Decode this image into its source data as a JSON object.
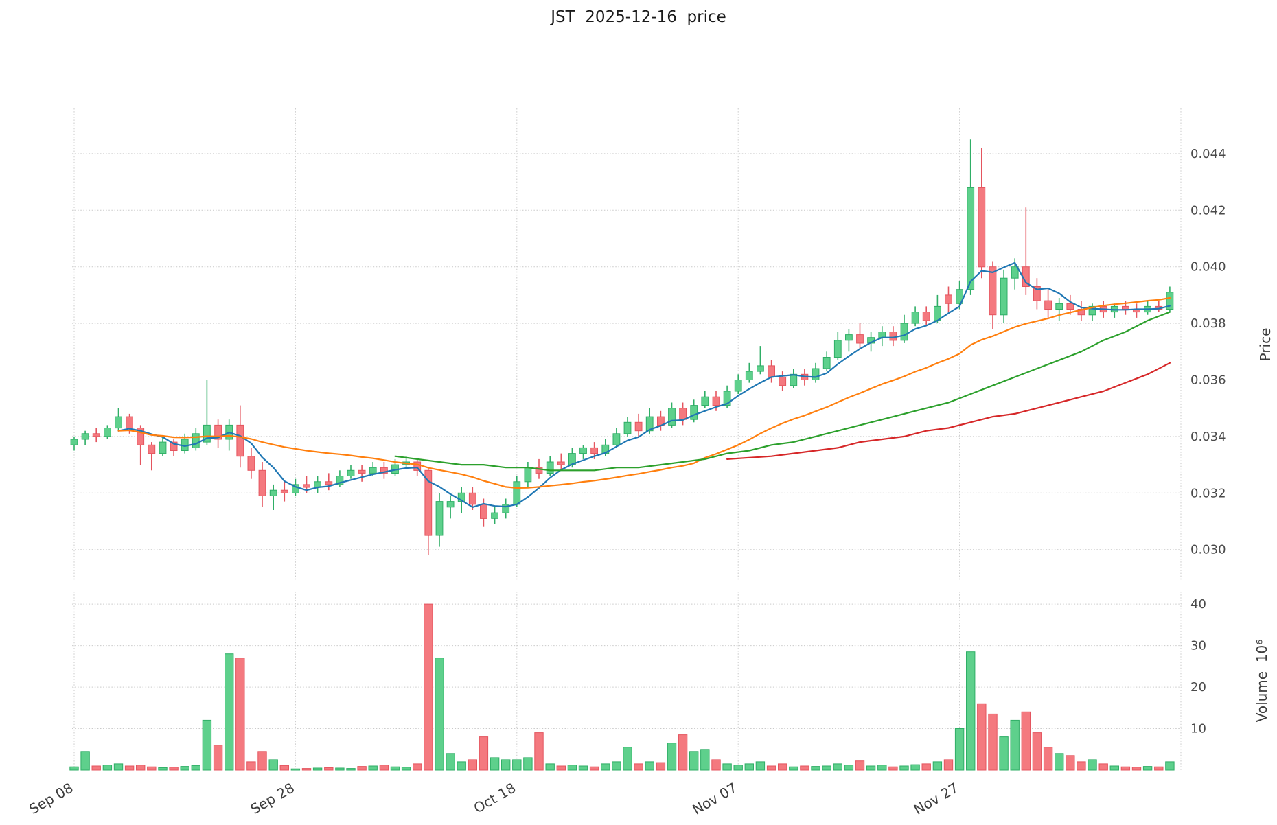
{
  "title": "JST  2025-12-16  price",
  "axes": {
    "price_label": "Price",
    "volume_label": "Volume  10⁶",
    "price_ticks": [
      0.03,
      0.032,
      0.034,
      0.036,
      0.038,
      0.04,
      0.042,
      0.044
    ],
    "volume_ticks": [
      10,
      20,
      30,
      40
    ],
    "x_ticks": [
      {
        "position": 0,
        "label": "Sep 08"
      },
      {
        "position": 20,
        "label": "Sep 28"
      },
      {
        "position": 40,
        "label": "Oct 18"
      },
      {
        "position": 60,
        "label": "Nov 07"
      },
      {
        "position": 80,
        "label": "Nov 27"
      }
    ],
    "extra_gridline_positions": [
      100
    ]
  },
  "colors": {
    "up_fill": "#5ed08c",
    "up_stroke": "#2fae66",
    "down_fill": "#f4797f",
    "down_stroke": "#e4555f",
    "ma_fast": "#1f77b4",
    "ma_mid": "#ff7f0e",
    "ma_slow": "#2ca02c",
    "ma_long": "#d62728"
  },
  "chart_data": {
    "type": "candlestick+volume",
    "symbol": "JST",
    "as_of_date": "2025-12-16",
    "price_axis_range": [
      0.03,
      0.044
    ],
    "volume_axis_max": 40,
    "dates": [
      "2025-09-08",
      "2025-09-09",
      "2025-09-10",
      "2025-09-11",
      "2025-09-12",
      "2025-09-13",
      "2025-09-14",
      "2025-09-15",
      "2025-09-16",
      "2025-09-17",
      "2025-09-18",
      "2025-09-19",
      "2025-09-20",
      "2025-09-21",
      "2025-09-22",
      "2025-09-23",
      "2025-09-24",
      "2025-09-25",
      "2025-09-26",
      "2025-09-27",
      "2025-09-28",
      "2025-09-29",
      "2025-09-30",
      "2025-10-01",
      "2025-10-02",
      "2025-10-03",
      "2025-10-04",
      "2025-10-05",
      "2025-10-06",
      "2025-10-07",
      "2025-10-08",
      "2025-10-09",
      "2025-10-10",
      "2025-10-11",
      "2025-10-12",
      "2025-10-13",
      "2025-10-14",
      "2025-10-15",
      "2025-10-16",
      "2025-10-17",
      "2025-10-18",
      "2025-10-19",
      "2025-10-20",
      "2025-10-21",
      "2025-10-22",
      "2025-10-23",
      "2025-10-24",
      "2025-10-25",
      "2025-10-26",
      "2025-10-27",
      "2025-10-28",
      "2025-10-29",
      "2025-10-30",
      "2025-10-31",
      "2025-11-01",
      "2025-11-02",
      "2025-11-03",
      "2025-11-04",
      "2025-11-05",
      "2025-11-06",
      "2025-11-07",
      "2025-11-08",
      "2025-11-09",
      "2025-11-10",
      "2025-11-11",
      "2025-11-12",
      "2025-11-13",
      "2025-11-14",
      "2025-11-15",
      "2025-11-16",
      "2025-11-17",
      "2025-11-18",
      "2025-11-19",
      "2025-11-20",
      "2025-11-21",
      "2025-11-22",
      "2025-11-23",
      "2025-11-24",
      "2025-11-25",
      "2025-11-26",
      "2025-11-27",
      "2025-11-28",
      "2025-11-29",
      "2025-11-30",
      "2025-12-01",
      "2025-12-02",
      "2025-12-03",
      "2025-12-04",
      "2025-12-05",
      "2025-12-06",
      "2025-12-07",
      "2025-12-08",
      "2025-12-09",
      "2025-12-10",
      "2025-12-11",
      "2025-12-12",
      "2025-12-13",
      "2025-12-14",
      "2025-12-15",
      "2025-12-16"
    ],
    "ohlc": [
      [
        0.0337,
        0.034,
        0.0335,
        0.0339
      ],
      [
        0.0339,
        0.0342,
        0.0337,
        0.0341
      ],
      [
        0.0341,
        0.0343,
        0.0338,
        0.034
      ],
      [
        0.034,
        0.0344,
        0.0339,
        0.0343
      ],
      [
        0.0343,
        0.035,
        0.0342,
        0.0347
      ],
      [
        0.0347,
        0.0348,
        0.0341,
        0.0343
      ],
      [
        0.0343,
        0.0344,
        0.033,
        0.0337
      ],
      [
        0.0337,
        0.0338,
        0.0328,
        0.0334
      ],
      [
        0.0334,
        0.034,
        0.0333,
        0.0338
      ],
      [
        0.0338,
        0.0339,
        0.0333,
        0.0335
      ],
      [
        0.0335,
        0.0341,
        0.0334,
        0.0339
      ],
      [
        0.0336,
        0.0343,
        0.0335,
        0.0341
      ],
      [
        0.0338,
        0.036,
        0.0337,
        0.0344
      ],
      [
        0.0344,
        0.0346,
        0.0336,
        0.0339
      ],
      [
        0.0339,
        0.0346,
        0.0335,
        0.0344
      ],
      [
        0.0344,
        0.0351,
        0.0329,
        0.0333
      ],
      [
        0.0333,
        0.0336,
        0.0325,
        0.0328
      ],
      [
        0.0328,
        0.0331,
        0.0315,
        0.0319
      ],
      [
        0.0319,
        0.0323,
        0.0314,
        0.0321
      ],
      [
        0.0321,
        0.0324,
        0.0317,
        0.032
      ],
      [
        0.032,
        0.0325,
        0.0319,
        0.0323
      ],
      [
        0.0323,
        0.0326,
        0.032,
        0.0322
      ],
      [
        0.0322,
        0.0326,
        0.032,
        0.0324
      ],
      [
        0.0324,
        0.0327,
        0.0321,
        0.0323
      ],
      [
        0.0323,
        0.0328,
        0.0322,
        0.0326
      ],
      [
        0.0326,
        0.033,
        0.0325,
        0.0328
      ],
      [
        0.0328,
        0.033,
        0.0324,
        0.0327
      ],
      [
        0.0327,
        0.0331,
        0.0326,
        0.0329
      ],
      [
        0.0329,
        0.0331,
        0.0325,
        0.0327
      ],
      [
        0.0327,
        0.0332,
        0.0326,
        0.033
      ],
      [
        0.033,
        0.0333,
        0.0329,
        0.0331
      ],
      [
        0.0331,
        0.0332,
        0.0326,
        0.0328
      ],
      [
        0.0328,
        0.0329,
        0.0298,
        0.0305
      ],
      [
        0.0305,
        0.032,
        0.0301,
        0.0317
      ],
      [
        0.0315,
        0.0319,
        0.0311,
        0.0317
      ],
      [
        0.0317,
        0.0322,
        0.0313,
        0.032
      ],
      [
        0.032,
        0.0322,
        0.0314,
        0.0316
      ],
      [
        0.0316,
        0.0318,
        0.0308,
        0.0311
      ],
      [
        0.0311,
        0.0315,
        0.0309,
        0.0313
      ],
      [
        0.0313,
        0.0318,
        0.0311,
        0.0316
      ],
      [
        0.0316,
        0.0326,
        0.0315,
        0.0324
      ],
      [
        0.0324,
        0.0331,
        0.0322,
        0.0329
      ],
      [
        0.0329,
        0.0332,
        0.0325,
        0.0327
      ],
      [
        0.0327,
        0.0333,
        0.0326,
        0.0331
      ],
      [
        0.0331,
        0.0334,
        0.0328,
        0.033
      ],
      [
        0.033,
        0.0336,
        0.0329,
        0.0334
      ],
      [
        0.0334,
        0.0337,
        0.0332,
        0.0336
      ],
      [
        0.0336,
        0.0338,
        0.0332,
        0.0334
      ],
      [
        0.0334,
        0.0339,
        0.0333,
        0.0337
      ],
      [
        0.0337,
        0.0343,
        0.0336,
        0.0341
      ],
      [
        0.0341,
        0.0347,
        0.034,
        0.0345
      ],
      [
        0.0345,
        0.0348,
        0.034,
        0.0342
      ],
      [
        0.0342,
        0.035,
        0.0341,
        0.0347
      ],
      [
        0.0347,
        0.0349,
        0.0342,
        0.0344
      ],
      [
        0.0344,
        0.0352,
        0.0343,
        0.035
      ],
      [
        0.035,
        0.0352,
        0.0344,
        0.0346
      ],
      [
        0.0346,
        0.0353,
        0.0345,
        0.0351
      ],
      [
        0.0351,
        0.0356,
        0.035,
        0.0354
      ],
      [
        0.0354,
        0.0356,
        0.0349,
        0.0351
      ],
      [
        0.0351,
        0.0358,
        0.035,
        0.0356
      ],
      [
        0.0356,
        0.0362,
        0.0355,
        0.036
      ],
      [
        0.036,
        0.0366,
        0.0359,
        0.0363
      ],
      [
        0.0363,
        0.0372,
        0.0362,
        0.0365
      ],
      [
        0.0365,
        0.0367,
        0.0359,
        0.0361
      ],
      [
        0.0361,
        0.0363,
        0.0356,
        0.0358
      ],
      [
        0.0358,
        0.0364,
        0.0357,
        0.0362
      ],
      [
        0.0362,
        0.0364,
        0.0358,
        0.036
      ],
      [
        0.036,
        0.0366,
        0.0359,
        0.0364
      ],
      [
        0.0364,
        0.037,
        0.0363,
        0.0368
      ],
      [
        0.0368,
        0.0377,
        0.0367,
        0.0374
      ],
      [
        0.0374,
        0.0378,
        0.037,
        0.0376
      ],
      [
        0.0376,
        0.038,
        0.0371,
        0.0373
      ],
      [
        0.0373,
        0.0377,
        0.037,
        0.0375
      ],
      [
        0.0375,
        0.0379,
        0.0372,
        0.0377
      ],
      [
        0.0377,
        0.0379,
        0.0372,
        0.0374
      ],
      [
        0.0374,
        0.0383,
        0.0373,
        0.038
      ],
      [
        0.038,
        0.0386,
        0.0379,
        0.0384
      ],
      [
        0.0384,
        0.0386,
        0.0379,
        0.0381
      ],
      [
        0.0381,
        0.039,
        0.038,
        0.0386
      ],
      [
        0.039,
        0.0393,
        0.0384,
        0.0387
      ],
      [
        0.0387,
        0.0395,
        0.0385,
        0.0392
      ],
      [
        0.0392,
        0.0445,
        0.039,
        0.0428
      ],
      [
        0.0428,
        0.0442,
        0.0396,
        0.04
      ],
      [
        0.04,
        0.0402,
        0.0378,
        0.0383
      ],
      [
        0.0383,
        0.0399,
        0.038,
        0.0396
      ],
      [
        0.0396,
        0.0403,
        0.0392,
        0.04
      ],
      [
        0.04,
        0.0421,
        0.039,
        0.0393
      ],
      [
        0.0393,
        0.0396,
        0.0385,
        0.0388
      ],
      [
        0.0388,
        0.0392,
        0.0382,
        0.0385
      ],
      [
        0.0385,
        0.0389,
        0.0381,
        0.0387
      ],
      [
        0.0387,
        0.039,
        0.0383,
        0.0385
      ],
      [
        0.0385,
        0.0388,
        0.0381,
        0.0383
      ],
      [
        0.0383,
        0.0387,
        0.0381,
        0.0386
      ],
      [
        0.0386,
        0.0388,
        0.0382,
        0.0384
      ],
      [
        0.0384,
        0.0387,
        0.0382,
        0.0386
      ],
      [
        0.0386,
        0.0388,
        0.0383,
        0.0385
      ],
      [
        0.0385,
        0.0387,
        0.0382,
        0.0384
      ],
      [
        0.0384,
        0.0388,
        0.0383,
        0.0386
      ],
      [
        0.0386,
        0.0388,
        0.0384,
        0.0385
      ],
      [
        0.0385,
        0.0393,
        0.0384,
        0.0391
      ]
    ],
    "volume_millions": [
      0.8,
      4.5,
      1.0,
      1.2,
      1.5,
      1.0,
      1.2,
      0.8,
      0.6,
      0.7,
      0.9,
      1.1,
      12,
      6,
      28,
      27,
      2,
      4.5,
      2.5,
      1.1,
      0.3,
      0.4,
      0.5,
      0.6,
      0.5,
      0.4,
      0.9,
      1.0,
      1.2,
      0.8,
      0.7,
      1.5,
      40,
      27,
      4,
      2,
      2.5,
      8,
      3,
      2.5,
      2.5,
      3,
      9,
      1.5,
      1.0,
      1.2,
      1.0,
      0.8,
      1.5,
      2.0,
      5.5,
      1.5,
      2.0,
      1.8,
      6.5,
      8.5,
      4.5,
      5.0,
      2.5,
      1.5,
      1.2,
      1.5,
      2.0,
      1.0,
      1.5,
      0.8,
      1.0,
      0.9,
      1.0,
      1.5,
      1.2,
      2.2,
      1.0,
      1.2,
      0.8,
      1.0,
      1.3,
      1.5,
      2.0,
      2.5,
      10,
      28.5,
      16,
      13.5,
      8,
      12,
      14,
      9,
      5.5,
      4,
      3.5,
      2,
      2.5,
      1.5,
      1.0,
      0.8,
      0.7,
      0.9,
      0.8,
      2.0
    ],
    "overlays": {
      "moving_averages": [
        {
          "name": "ma-fast-line",
          "window": 5,
          "min_periods": 5,
          "color": "#1f77b4"
        },
        {
          "name": "ma-mid-line",
          "window": 25,
          "min_periods": 5,
          "color": "#ff7f0e"
        }
      ],
      "traced_trend_lines": [
        {
          "name": "ma-slow-line",
          "color": "#2ca02c",
          "points": [
            [
              29,
              0.0333
            ],
            [
              31,
              0.0332
            ],
            [
              33,
              0.0331
            ],
            [
              35,
              0.033
            ],
            [
              37,
              0.033
            ],
            [
              39,
              0.0329
            ],
            [
              41,
              0.0329
            ],
            [
              43,
              0.0328
            ],
            [
              45,
              0.0328
            ],
            [
              47,
              0.0328
            ],
            [
              49,
              0.0329
            ],
            [
              51,
              0.0329
            ],
            [
              53,
              0.033
            ],
            [
              55,
              0.0331
            ],
            [
              57,
              0.0332
            ],
            [
              59,
              0.0334
            ],
            [
              61,
              0.0335
            ],
            [
              63,
              0.0337
            ],
            [
              65,
              0.0338
            ],
            [
              67,
              0.034
            ],
            [
              69,
              0.0342
            ],
            [
              71,
              0.0344
            ],
            [
              73,
              0.0346
            ],
            [
              75,
              0.0348
            ],
            [
              77,
              0.035
            ],
            [
              79,
              0.0352
            ],
            [
              81,
              0.0355
            ],
            [
              83,
              0.0358
            ],
            [
              85,
              0.0361
            ],
            [
              87,
              0.0364
            ],
            [
              89,
              0.0367
            ],
            [
              91,
              0.037
            ],
            [
              93,
              0.0374
            ],
            [
              95,
              0.0377
            ],
            [
              97,
              0.0381
            ],
            [
              99,
              0.0384
            ]
          ]
        },
        {
          "name": "ma-long-line",
          "color": "#d62728",
          "points": [
            [
              59,
              0.0332
            ],
            [
              61,
              0.03325
            ],
            [
              63,
              0.0333
            ],
            [
              65,
              0.0334
            ],
            [
              67,
              0.0335
            ],
            [
              69,
              0.0336
            ],
            [
              71,
              0.0338
            ],
            [
              73,
              0.0339
            ],
            [
              75,
              0.034
            ],
            [
              77,
              0.0342
            ],
            [
              79,
              0.0343
            ],
            [
              81,
              0.0345
            ],
            [
              83,
              0.0347
            ],
            [
              85,
              0.0348
            ],
            [
              87,
              0.035
            ],
            [
              89,
              0.0352
            ],
            [
              91,
              0.0354
            ],
            [
              93,
              0.0356
            ],
            [
              95,
              0.0359
            ],
            [
              97,
              0.0362
            ],
            [
              99,
              0.0366
            ]
          ]
        }
      ]
    }
  }
}
